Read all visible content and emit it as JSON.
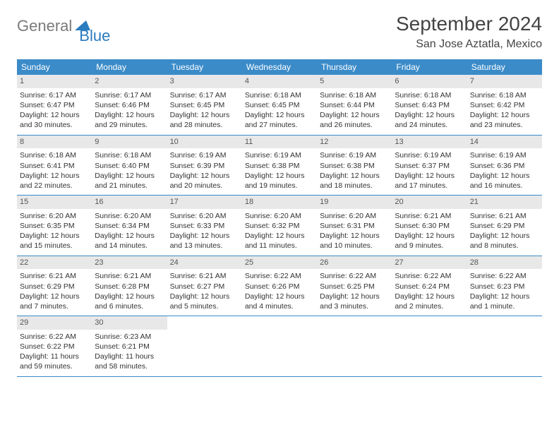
{
  "logo": {
    "gray": "General",
    "blue": "Blue"
  },
  "title": "September 2024",
  "location": "San Jose Aztatla, Mexico",
  "colors": {
    "header_bg": "#3b8bc9",
    "header_fg": "#ffffff",
    "daynum_bg": "#e8e8e8",
    "rule": "#3b8bc9",
    "logo_gray": "#7a7a7a",
    "logo_blue": "#2b7bbf"
  },
  "weekdays": [
    "Sunday",
    "Monday",
    "Tuesday",
    "Wednesday",
    "Thursday",
    "Friday",
    "Saturday"
  ],
  "weeks": [
    [
      {
        "n": "1",
        "sr": "Sunrise: 6:17 AM",
        "ss": "Sunset: 6:47 PM",
        "dl": "Daylight: 12 hours and 30 minutes."
      },
      {
        "n": "2",
        "sr": "Sunrise: 6:17 AM",
        "ss": "Sunset: 6:46 PM",
        "dl": "Daylight: 12 hours and 29 minutes."
      },
      {
        "n": "3",
        "sr": "Sunrise: 6:17 AM",
        "ss": "Sunset: 6:45 PM",
        "dl": "Daylight: 12 hours and 28 minutes."
      },
      {
        "n": "4",
        "sr": "Sunrise: 6:18 AM",
        "ss": "Sunset: 6:45 PM",
        "dl": "Daylight: 12 hours and 27 minutes."
      },
      {
        "n": "5",
        "sr": "Sunrise: 6:18 AM",
        "ss": "Sunset: 6:44 PM",
        "dl": "Daylight: 12 hours and 26 minutes."
      },
      {
        "n": "6",
        "sr": "Sunrise: 6:18 AM",
        "ss": "Sunset: 6:43 PM",
        "dl": "Daylight: 12 hours and 24 minutes."
      },
      {
        "n": "7",
        "sr": "Sunrise: 6:18 AM",
        "ss": "Sunset: 6:42 PM",
        "dl": "Daylight: 12 hours and 23 minutes."
      }
    ],
    [
      {
        "n": "8",
        "sr": "Sunrise: 6:18 AM",
        "ss": "Sunset: 6:41 PM",
        "dl": "Daylight: 12 hours and 22 minutes."
      },
      {
        "n": "9",
        "sr": "Sunrise: 6:18 AM",
        "ss": "Sunset: 6:40 PM",
        "dl": "Daylight: 12 hours and 21 minutes."
      },
      {
        "n": "10",
        "sr": "Sunrise: 6:19 AM",
        "ss": "Sunset: 6:39 PM",
        "dl": "Daylight: 12 hours and 20 minutes."
      },
      {
        "n": "11",
        "sr": "Sunrise: 6:19 AM",
        "ss": "Sunset: 6:38 PM",
        "dl": "Daylight: 12 hours and 19 minutes."
      },
      {
        "n": "12",
        "sr": "Sunrise: 6:19 AM",
        "ss": "Sunset: 6:38 PM",
        "dl": "Daylight: 12 hours and 18 minutes."
      },
      {
        "n": "13",
        "sr": "Sunrise: 6:19 AM",
        "ss": "Sunset: 6:37 PM",
        "dl": "Daylight: 12 hours and 17 minutes."
      },
      {
        "n": "14",
        "sr": "Sunrise: 6:19 AM",
        "ss": "Sunset: 6:36 PM",
        "dl": "Daylight: 12 hours and 16 minutes."
      }
    ],
    [
      {
        "n": "15",
        "sr": "Sunrise: 6:20 AM",
        "ss": "Sunset: 6:35 PM",
        "dl": "Daylight: 12 hours and 15 minutes."
      },
      {
        "n": "16",
        "sr": "Sunrise: 6:20 AM",
        "ss": "Sunset: 6:34 PM",
        "dl": "Daylight: 12 hours and 14 minutes."
      },
      {
        "n": "17",
        "sr": "Sunrise: 6:20 AM",
        "ss": "Sunset: 6:33 PM",
        "dl": "Daylight: 12 hours and 13 minutes."
      },
      {
        "n": "18",
        "sr": "Sunrise: 6:20 AM",
        "ss": "Sunset: 6:32 PM",
        "dl": "Daylight: 12 hours and 11 minutes."
      },
      {
        "n": "19",
        "sr": "Sunrise: 6:20 AM",
        "ss": "Sunset: 6:31 PM",
        "dl": "Daylight: 12 hours and 10 minutes."
      },
      {
        "n": "20",
        "sr": "Sunrise: 6:21 AM",
        "ss": "Sunset: 6:30 PM",
        "dl": "Daylight: 12 hours and 9 minutes."
      },
      {
        "n": "21",
        "sr": "Sunrise: 6:21 AM",
        "ss": "Sunset: 6:29 PM",
        "dl": "Daylight: 12 hours and 8 minutes."
      }
    ],
    [
      {
        "n": "22",
        "sr": "Sunrise: 6:21 AM",
        "ss": "Sunset: 6:29 PM",
        "dl": "Daylight: 12 hours and 7 minutes."
      },
      {
        "n": "23",
        "sr": "Sunrise: 6:21 AM",
        "ss": "Sunset: 6:28 PM",
        "dl": "Daylight: 12 hours and 6 minutes."
      },
      {
        "n": "24",
        "sr": "Sunrise: 6:21 AM",
        "ss": "Sunset: 6:27 PM",
        "dl": "Daylight: 12 hours and 5 minutes."
      },
      {
        "n": "25",
        "sr": "Sunrise: 6:22 AM",
        "ss": "Sunset: 6:26 PM",
        "dl": "Daylight: 12 hours and 4 minutes."
      },
      {
        "n": "26",
        "sr": "Sunrise: 6:22 AM",
        "ss": "Sunset: 6:25 PM",
        "dl": "Daylight: 12 hours and 3 minutes."
      },
      {
        "n": "27",
        "sr": "Sunrise: 6:22 AM",
        "ss": "Sunset: 6:24 PM",
        "dl": "Daylight: 12 hours and 2 minutes."
      },
      {
        "n": "28",
        "sr": "Sunrise: 6:22 AM",
        "ss": "Sunset: 6:23 PM",
        "dl": "Daylight: 12 hours and 1 minute."
      }
    ],
    [
      {
        "n": "29",
        "sr": "Sunrise: 6:22 AM",
        "ss": "Sunset: 6:22 PM",
        "dl": "Daylight: 11 hours and 59 minutes."
      },
      {
        "n": "30",
        "sr": "Sunrise: 6:23 AM",
        "ss": "Sunset: 6:21 PM",
        "dl": "Daylight: 11 hours and 58 minutes."
      },
      null,
      null,
      null,
      null,
      null
    ]
  ]
}
